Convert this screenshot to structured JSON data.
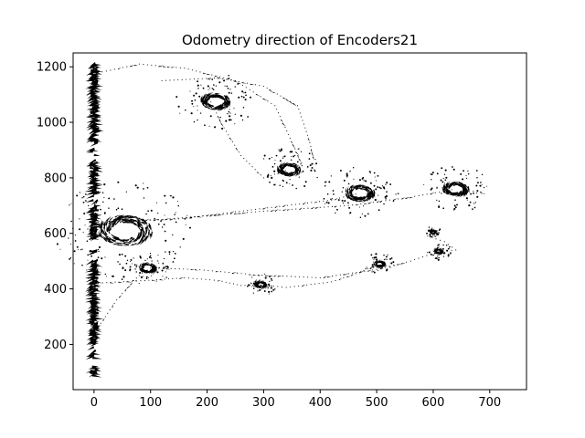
{
  "chart_data": {
    "type": "quiver",
    "title": "Odometry direction of Encoders21",
    "xlabel": "",
    "ylabel": "",
    "xlim": [
      -37,
      765
    ],
    "ylim": [
      37,
      1250
    ],
    "xticks": [
      "0",
      "100",
      "200",
      "300",
      "400",
      "500",
      "600",
      "700"
    ],
    "xtick_values": [
      0,
      100,
      200,
      300,
      400,
      500,
      600,
      700
    ],
    "yticks": [
      "200",
      "400",
      "600",
      "800",
      "1000",
      "1200"
    ],
    "ytick_values": [
      200,
      400,
      600,
      800,
      1000,
      1200
    ],
    "grid": false,
    "arrow_color": "#000000",
    "dense_column": {
      "x": 0,
      "y_from": 90,
      "y_to": 1210
    },
    "clusters": [
      {
        "x": 55,
        "y": 610,
        "r": 45
      },
      {
        "x": 215,
        "y": 1075,
        "r": 25
      },
      {
        "x": 345,
        "y": 830,
        "r": 20
      },
      {
        "x": 470,
        "y": 745,
        "r": 25
      },
      {
        "x": 640,
        "y": 760,
        "r": 22
      },
      {
        "x": 95,
        "y": 475,
        "r": 15
      },
      {
        "x": 295,
        "y": 415,
        "r": 10
      },
      {
        "x": 505,
        "y": 490,
        "r": 10
      },
      {
        "x": 610,
        "y": 535,
        "r": 8
      },
      {
        "x": 600,
        "y": 605,
        "r": 6
      }
    ],
    "paths": [
      [
        [
          0,
          1175
        ],
        [
          80,
          1210
        ],
        [
          160,
          1195
        ],
        [
          250,
          1150
        ],
        [
          320,
          1060
        ],
        [
          350,
          930
        ],
        [
          370,
          840
        ]
      ],
      [
        [
          0,
          640
        ],
        [
          120,
          650
        ],
        [
          300,
          680
        ],
        [
          450,
          700
        ],
        [
          560,
          730
        ],
        [
          640,
          760
        ]
      ],
      [
        [
          0,
          640
        ],
        [
          150,
          652
        ],
        [
          300,
          690
        ],
        [
          420,
          720
        ],
        [
          470,
          745
        ]
      ],
      [
        [
          120,
          1150
        ],
        [
          220,
          1160
        ],
        [
          300,
          1130
        ],
        [
          360,
          1060
        ],
        [
          380,
          940
        ],
        [
          390,
          860
        ]
      ],
      [
        [
          200,
          1100
        ],
        [
          230,
          980
        ],
        [
          260,
          880
        ],
        [
          300,
          800
        ],
        [
          345,
          830
        ]
      ],
      [
        [
          0,
          420
        ],
        [
          90,
          430
        ],
        [
          160,
          440
        ],
        [
          220,
          430
        ],
        [
          260,
          412
        ],
        [
          295,
          415
        ]
      ],
      [
        [
          295,
          415
        ],
        [
          340,
          405
        ],
        [
          420,
          425
        ],
        [
          470,
          460
        ],
        [
          505,
          490
        ]
      ],
      [
        [
          100,
          475
        ],
        [
          180,
          470
        ],
        [
          290,
          450
        ],
        [
          400,
          440
        ],
        [
          500,
          470
        ],
        [
          560,
          500
        ],
        [
          610,
          535
        ]
      ],
      [
        [
          610,
          535
        ],
        [
          640,
          540
        ],
        [
          620,
          570
        ],
        [
          590,
          590
        ],
        [
          600,
          605
        ]
      ],
      [
        [
          0,
          240
        ],
        [
          20,
          300
        ],
        [
          40,
          360
        ],
        [
          70,
          430
        ],
        [
          95,
          475
        ]
      ]
    ]
  }
}
